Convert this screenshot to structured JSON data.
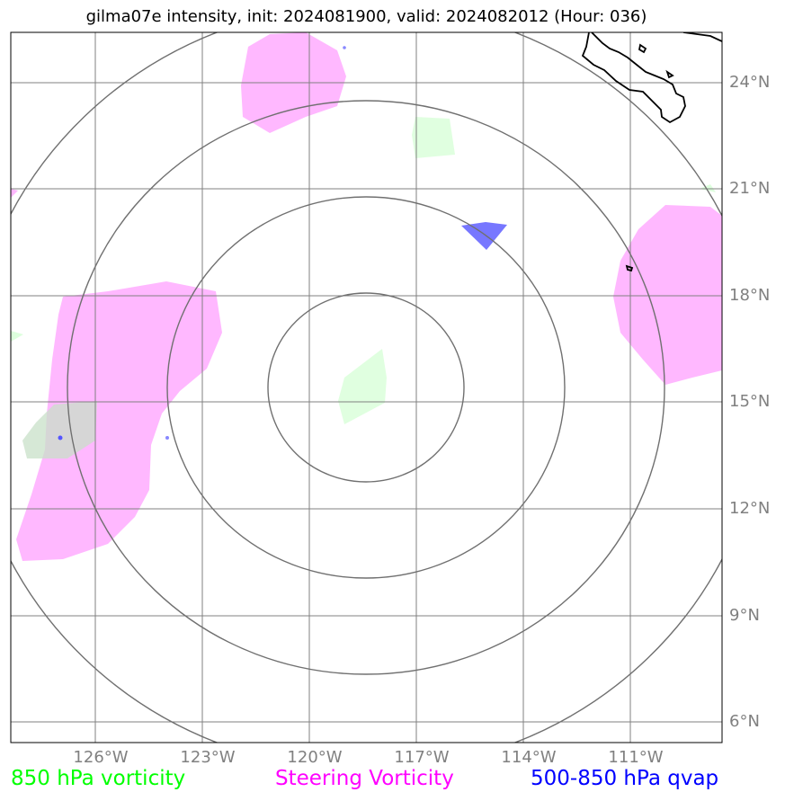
{
  "title": "gilma07e intensity, init: 2024081900, valid: 2024082012 (Hour: 036)",
  "lat_labels": [
    "24°N",
    "21°N",
    "18°N",
    "15°N",
    "12°N",
    "9°N",
    "6°N"
  ],
  "lon_labels": [
    "126°W",
    "123°W",
    "120°W",
    "117°W",
    "114°W",
    "111°W"
  ],
  "legend": {
    "vort850": "850 hPa vorticity",
    "steering": "Steering Vorticity",
    "qvap": "500-850 hPa qvap"
  },
  "colors": {
    "vort850": "#00ff00",
    "steering": "#ff00ff",
    "qvap": "#0000ff",
    "grid": "#808080",
    "rings": "#707070",
    "vort850_fill": "#ddffdd",
    "steering_fill": "#ffb8ff",
    "qvap_fill": "#7777ff"
  }
}
